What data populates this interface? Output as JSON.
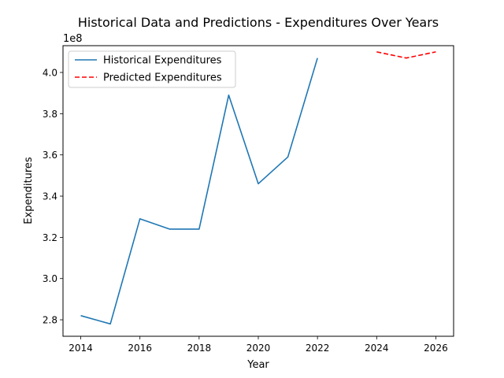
{
  "chart_data": {
    "type": "line",
    "title": "Historical Data and Predictions - Expenditures Over Years",
    "xlabel": "Year",
    "ylabel": "Expenditures",
    "y_offset_label": "1e8",
    "xlim": [
      2013.4,
      2026.6
    ],
    "ylim": [
      2.72,
      4.13
    ],
    "x_ticks": [
      2014,
      2016,
      2018,
      2020,
      2022,
      2024,
      2026
    ],
    "y_ticks": [
      2.8,
      3.0,
      3.2,
      3.4,
      3.6,
      3.8,
      4.0
    ],
    "y_tick_labels": [
      "2.8",
      "3.0",
      "3.2",
      "3.4",
      "3.6",
      "3.8",
      "4.0"
    ],
    "grid": false,
    "legend_position": "top-left",
    "series": [
      {
        "name": "Historical Expenditures",
        "color": "#1f77b4",
        "style": "solid",
        "x": [
          2014,
          2015,
          2016,
          2017,
          2018,
          2019,
          2020,
          2021,
          2022
        ],
        "y": [
          2.82,
          2.78,
          3.29,
          3.24,
          3.24,
          3.89,
          3.46,
          3.59,
          4.07
        ]
      },
      {
        "name": "Predicted Expenditures",
        "color": "#ff0000",
        "style": "dashed",
        "x": [
          2024,
          2025,
          2026
        ],
        "y": [
          4.1,
          4.07,
          4.1
        ]
      }
    ]
  }
}
